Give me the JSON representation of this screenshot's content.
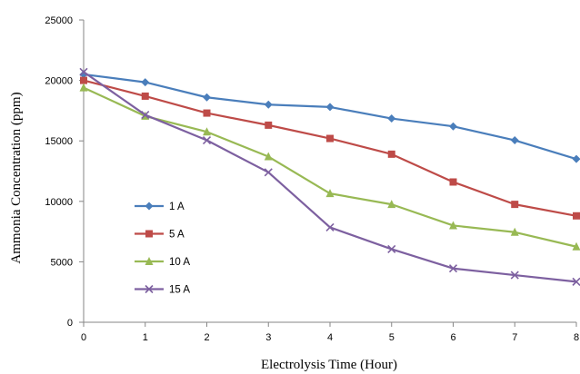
{
  "chart_data": {
    "type": "line",
    "title": "",
    "xlabel": "Electrolysis Time (Hour)",
    "ylabel": "Ammonia Concentration (ppm)",
    "x": [
      0,
      1,
      2,
      3,
      4,
      5,
      6,
      7,
      8
    ],
    "xticks": [
      "0",
      "1",
      "2",
      "3",
      "4",
      "5",
      "6",
      "7",
      "8"
    ],
    "yticks": [
      "0",
      "5000",
      "10000",
      "15000",
      "20000",
      "25000"
    ],
    "ylim": [
      0,
      25000
    ],
    "xlim": [
      0,
      8
    ],
    "grid": false,
    "legend_position": "left-center",
    "series": [
      {
        "name": "1 A",
        "color": "#4a7ebb",
        "marker": "diamond",
        "values": [
          20500,
          19850,
          18600,
          18000,
          17800,
          16850,
          16200,
          15050,
          13500
        ]
      },
      {
        "name": "5 A",
        "color": "#be4b48",
        "marker": "square",
        "values": [
          20000,
          18700,
          17300,
          16300,
          15200,
          13900,
          11600,
          9750,
          8800
        ]
      },
      {
        "name": "10 A",
        "color": "#98b954",
        "marker": "triangle",
        "values": [
          19400,
          17050,
          15750,
          13700,
          10650,
          9750,
          8000,
          7450,
          6250
        ]
      },
      {
        "name": "15 A",
        "color": "#7d60a0",
        "marker": "x",
        "values": [
          20700,
          17150,
          15050,
          12400,
          7850,
          6050,
          4450,
          3900,
          3350
        ]
      }
    ]
  }
}
